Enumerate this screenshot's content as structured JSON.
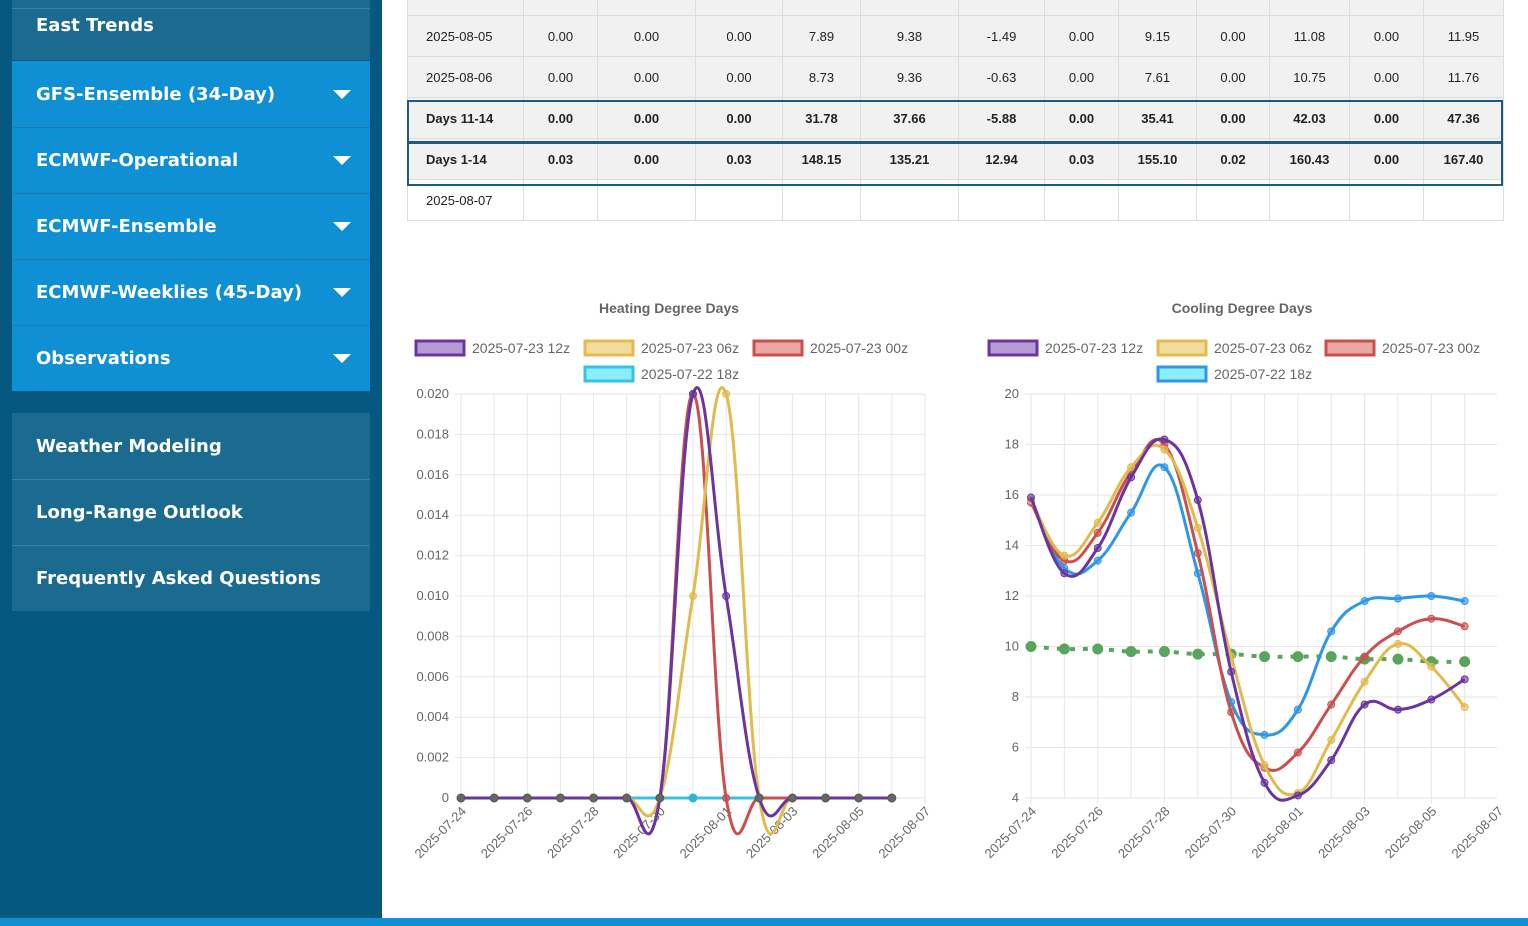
{
  "sidebar": {
    "top_items": [
      "East Trends"
    ],
    "dropdowns": [
      "GFS-Ensemble (34-Day)",
      "ECMWF-Operational",
      "ECMWF-Ensemble",
      "ECMWF-Weeklies (45-Day)",
      "Observations"
    ],
    "bottom_items": [
      "Weather Modeling",
      "Long-Range Outlook",
      "Frequently Asked Questions"
    ],
    "colors": {
      "background": "#05587f",
      "dark_item": "#1b6b91",
      "dropdown": "#0f8fd4"
    }
  },
  "table": {
    "rows": [
      {
        "style": "gray",
        "cells": [
          "2025-08-05",
          "0.00",
          "0.00",
          "0.00",
          "7.89",
          "9.38",
          "-1.49",
          "0.00",
          "9.15",
          "0.00",
          "11.08",
          "0.00",
          "11.95"
        ]
      },
      {
        "style": "gray",
        "cells": [
          "2025-08-06",
          "0.00",
          "0.00",
          "0.00",
          "8.73",
          "9.36",
          "-0.63",
          "0.00",
          "7.61",
          "0.00",
          "10.75",
          "0.00",
          "11.76"
        ]
      },
      {
        "style": "summary",
        "cells": [
          "Days 11-14",
          "0.00",
          "0.00",
          "0.00",
          "31.78",
          "37.66",
          "-5.88",
          "0.00",
          "35.41",
          "0.00",
          "42.03",
          "0.00",
          "47.36"
        ]
      },
      {
        "style": "summary",
        "cells": [
          "Days 1-14",
          "0.03",
          "0.00",
          "0.03",
          "148.15",
          "135.21",
          "12.94",
          "0.03",
          "155.10",
          "0.02",
          "160.43",
          "0.00",
          "167.40"
        ]
      },
      {
        "style": "white",
        "cells": [
          "2025-08-07",
          "",
          "",
          "",
          "",
          "",
          "",
          "",
          "",
          "",
          "",
          "",
          ""
        ]
      }
    ]
  },
  "chart_data": [
    {
      "type": "line",
      "title": "Heating Degree Days",
      "x": [
        "2025-07-24",
        "2025-07-25",
        "2025-07-26",
        "2025-07-27",
        "2025-07-28",
        "2025-07-29",
        "2025-07-30",
        "2025-07-31",
        "2025-08-01",
        "2025-08-02",
        "2025-08-03",
        "2025-08-04",
        "2025-08-05",
        "2025-08-06"
      ],
      "xticks": [
        "2025-07-24",
        "2025-07-26",
        "2025-07-28",
        "2025-07-30",
        "2025-08-01",
        "2025-08-03",
        "2025-08-05",
        "2025-08-07"
      ],
      "ylim": [
        0,
        0.02
      ],
      "yticks": [
        "0",
        "0.002",
        "0.004",
        "0.006",
        "0.008",
        "0.010",
        "0.012",
        "0.014",
        "0.016",
        "0.018",
        "0.020"
      ],
      "grid": true,
      "legend": "top",
      "series": [
        {
          "name": "2025-07-23 12z",
          "color": "#6b35a0",
          "fill": "#b79ad6",
          "values": [
            0,
            0,
            0,
            0,
            0,
            0,
            0,
            0.02,
            0.01,
            0,
            0,
            0,
            0,
            0
          ]
        },
        {
          "name": "2025-07-23 06z",
          "color": "#e1bb4e",
          "fill": "#f2dc9b",
          "values": [
            0,
            0,
            0,
            0,
            0,
            0,
            0,
            0.01,
            0.02,
            0,
            0,
            0,
            0,
            0
          ]
        },
        {
          "name": "2025-07-23 00z",
          "color": "#c9504f",
          "fill": "#eaa7a6",
          "values": [
            0,
            0,
            0,
            0,
            0,
            0,
            0,
            0.02,
            0,
            0,
            0,
            0,
            0,
            0
          ]
        },
        {
          "name": "2025-07-22 18z",
          "color": "#36c4e6",
          "fill": "#8aeefb",
          "values": [
            0,
            0,
            0,
            0,
            0,
            0,
            0,
            0,
            0,
            0,
            0,
            0,
            0,
            0
          ]
        }
      ]
    },
    {
      "type": "line",
      "title": "Cooling Degree Days",
      "x": [
        "2025-07-24",
        "2025-07-25",
        "2025-07-26",
        "2025-07-27",
        "2025-07-28",
        "2025-07-29",
        "2025-07-30",
        "2025-07-31",
        "2025-08-01",
        "2025-08-02",
        "2025-08-03",
        "2025-08-04",
        "2025-08-05",
        "2025-08-06"
      ],
      "xticks": [
        "2025-07-24",
        "2025-07-26",
        "2025-07-28",
        "2025-07-30",
        "2025-08-01",
        "2025-08-03",
        "2025-08-05",
        "2025-08-07"
      ],
      "ylim": [
        4,
        20
      ],
      "yticks": [
        "4",
        "6",
        "8",
        "10",
        "12",
        "14",
        "16",
        "18",
        "20"
      ],
      "grid": true,
      "legend": "top",
      "series": [
        {
          "name": "2025-07-23 12z",
          "color": "#6b35a0",
          "fill": "#b79ad6",
          "values": [
            15.9,
            12.9,
            13.9,
            16.7,
            18.2,
            15.8,
            9.0,
            4.6,
            4.1,
            5.5,
            7.7,
            7.5,
            7.9,
            8.7
          ]
        },
        {
          "name": "2025-07-23 06z",
          "color": "#e1bb4e",
          "fill": "#f2dc9b",
          "values": [
            15.8,
            13.6,
            14.9,
            17.1,
            17.8,
            14.7,
            9.6,
            5.3,
            4.2,
            6.3,
            8.6,
            10.1,
            9.2,
            7.6
          ]
        },
        {
          "name": "2025-07-23 00z",
          "color": "#c9504f",
          "fill": "#eaa7a6",
          "values": [
            15.7,
            13.4,
            14.5,
            16.9,
            18.0,
            13.7,
            7.4,
            5.2,
            5.8,
            7.7,
            9.6,
            10.6,
            11.1,
            10.8
          ]
        },
        {
          "name": "2025-07-22 18z",
          "color": "#2f97e6",
          "fill": "#8aeefb",
          "values": [
            15.8,
            13.1,
            13.4,
            15.3,
            17.1,
            12.9,
            7.8,
            6.5,
            7.5,
            10.6,
            11.8,
            11.9,
            12.0,
            11.8
          ]
        },
        {
          "color": "#5aa55e",
          "dashed": true,
          "legend": false,
          "values": [
            10.0,
            9.9,
            9.9,
            9.8,
            9.8,
            9.7,
            9.7,
            9.6,
            9.6,
            9.6,
            9.5,
            9.5,
            9.4,
            9.4
          ]
        }
      ]
    }
  ]
}
